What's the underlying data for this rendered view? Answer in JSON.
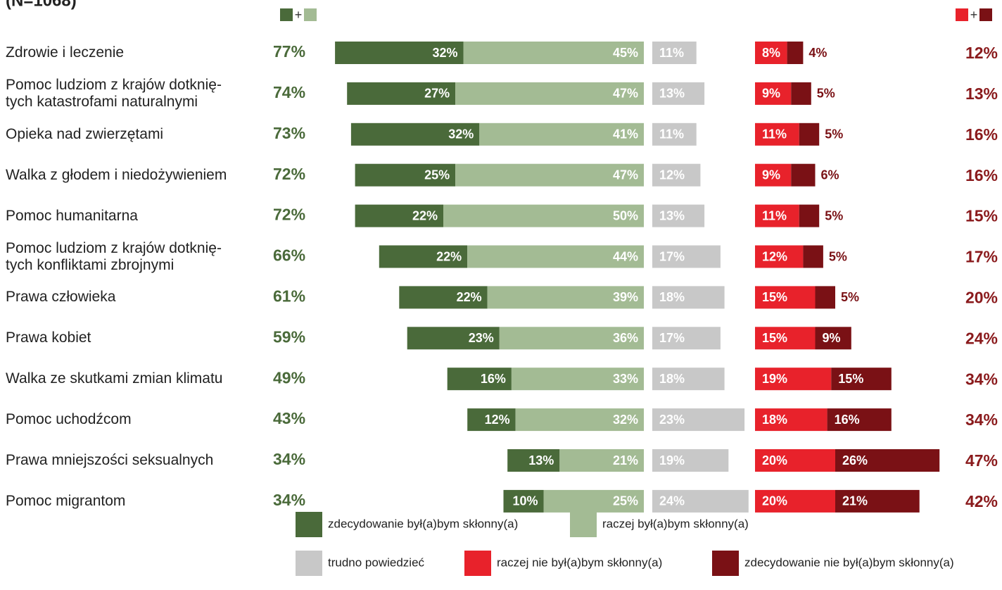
{
  "chart_data": {
    "type": "bar",
    "subtitle": "(N=1068)",
    "legend_sum_sign": "+",
    "categories": [
      "Zdrowie i leczenie",
      "Pomoc ludziom z krajów dotknię-\ntych katastrofami naturalnymi",
      "Opieka nad zwierzętami",
      "Walka z głodem i niedożywieniem",
      "Pomoc humanitarna",
      "Pomoc ludziom z krajów dotknię-\ntych konfliktami zbrojnymi",
      "Prawa człowieka",
      "Prawa kobiet",
      "Walka ze skutkami zmian klimatu",
      "Pomoc uchodźcom",
      "Prawa mniejszości seksualnych",
      "Pomoc migrantom"
    ],
    "series": [
      {
        "name": "zdecydowanie był(a)bym skłonny(a)",
        "color": "#4a6a3a",
        "values": [
          32,
          27,
          32,
          25,
          22,
          22,
          22,
          23,
          16,
          12,
          13,
          10
        ],
        "value_labels": [
          "32%",
          "27%",
          "32%",
          "25%",
          "22%",
          "22%",
          "22%",
          "23%",
          "16%",
          "12%",
          "13%",
          "10%"
        ]
      },
      {
        "name": "raczej był(a)bym skłonny(a)",
        "color": "#a3bb94",
        "values": [
          45,
          47,
          41,
          47,
          50,
          44,
          39,
          36,
          33,
          32,
          21,
          25
        ],
        "value_labels": [
          "45%",
          "47%",
          "41%",
          "47%",
          "50%",
          "44%",
          "39%",
          "36%",
          "33%",
          "32%",
          "21%",
          "25%"
        ]
      },
      {
        "name": "trudno powiedzieć",
        "color": "#c8c8c8",
        "values": [
          11,
          13,
          11,
          12,
          13,
          17,
          18,
          17,
          18,
          23,
          19,
          24
        ],
        "value_labels": [
          "11%",
          "13%",
          "11%",
          "12%",
          "13%",
          "17%",
          "18%",
          "17%",
          "18%",
          "23%",
          "19%",
          "24%"
        ]
      },
      {
        "name": "raczej nie był(a)bym skłonny(a)",
        "color": "#e8222b",
        "values": [
          8,
          9,
          11,
          9,
          11,
          12,
          15,
          15,
          19,
          18,
          20,
          20
        ],
        "value_labels": [
          "8%",
          "9%",
          "11%",
          "9%",
          "11%",
          "12%",
          "15%",
          "15%",
          "19%",
          "18%",
          "20%",
          "20%"
        ]
      },
      {
        "name": "zdecydowanie nie był(a)bym skłonny(a)",
        "color": "#7a1115",
        "values": [
          4,
          5,
          5,
          6,
          5,
          5,
          5,
          9,
          15,
          16,
          26,
          21
        ],
        "value_labels": [
          "4%",
          "5%",
          "5%",
          "6%",
          "5%",
          "5%",
          "5%",
          "9%",
          "15%",
          "16%",
          "26%",
          "21%"
        ]
      }
    ],
    "positive_totals": {
      "color": "#4a6a3a",
      "values": [
        77,
        74,
        73,
        72,
        72,
        66,
        61,
        59,
        49,
        43,
        34,
        34
      ],
      "value_labels": [
        "77%",
        "74%",
        "73%",
        "72%",
        "72%",
        "66%",
        "61%",
        "59%",
        "49%",
        "43%",
        "34%",
        "34%"
      ]
    },
    "negative_totals": {
      "color": "#8a1a1c",
      "values": [
        12,
        13,
        16,
        16,
        15,
        17,
        20,
        24,
        34,
        34,
        47,
        42
      ],
      "value_labels": [
        "12%",
        "13%",
        "16%",
        "16%",
        "15%",
        "17%",
        "20%",
        "24%",
        "34%",
        "34%",
        "47%",
        "42%"
      ]
    }
  }
}
